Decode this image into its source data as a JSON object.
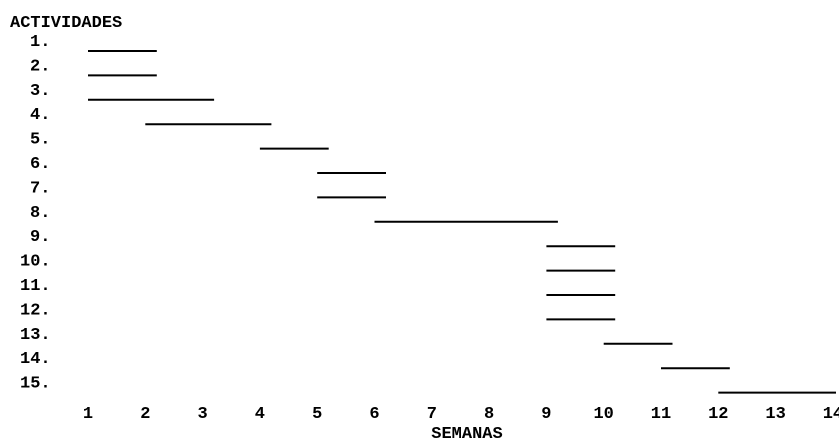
{
  "chart_data": {
    "type": "gantt",
    "title": "ACTIVIDADES",
    "xlabel": "SEMANAS",
    "ylabel": "",
    "x_ticks": [
      "1",
      "2",
      "3",
      "4",
      "5",
      "6",
      "7",
      "8",
      "9",
      "10",
      "11",
      "12",
      "13",
      "14"
    ],
    "xlim": [
      1,
      14
    ],
    "activities": [
      {
        "label": "1.",
        "start": 1,
        "end": 2.2
      },
      {
        "label": "2.",
        "start": 1,
        "end": 2.2
      },
      {
        "label": "3.",
        "start": 1,
        "end": 3.2
      },
      {
        "label": "4.",
        "start": 2,
        "end": 4.2
      },
      {
        "label": "5.",
        "start": 4,
        "end": 5.2
      },
      {
        "label": "6.",
        "start": 5,
        "end": 6.2
      },
      {
        "label": "7.",
        "start": 5,
        "end": 6.2
      },
      {
        "label": "8.",
        "start": 6,
        "end": 9.2
      },
      {
        "label": "9.",
        "start": 9,
        "end": 10.2
      },
      {
        "label": "10.",
        "start": 9,
        "end": 10.2
      },
      {
        "label": "11.",
        "start": 9,
        "end": 10.2
      },
      {
        "label": "12.",
        "start": 9,
        "end": 10.2
      },
      {
        "label": "13.",
        "start": 10,
        "end": 11.2
      },
      {
        "label": "14.",
        "start": 11,
        "end": 12.2
      },
      {
        "label": "15.",
        "start": 12,
        "end": 14.4
      }
    ],
    "grid": false,
    "legend": "none"
  }
}
